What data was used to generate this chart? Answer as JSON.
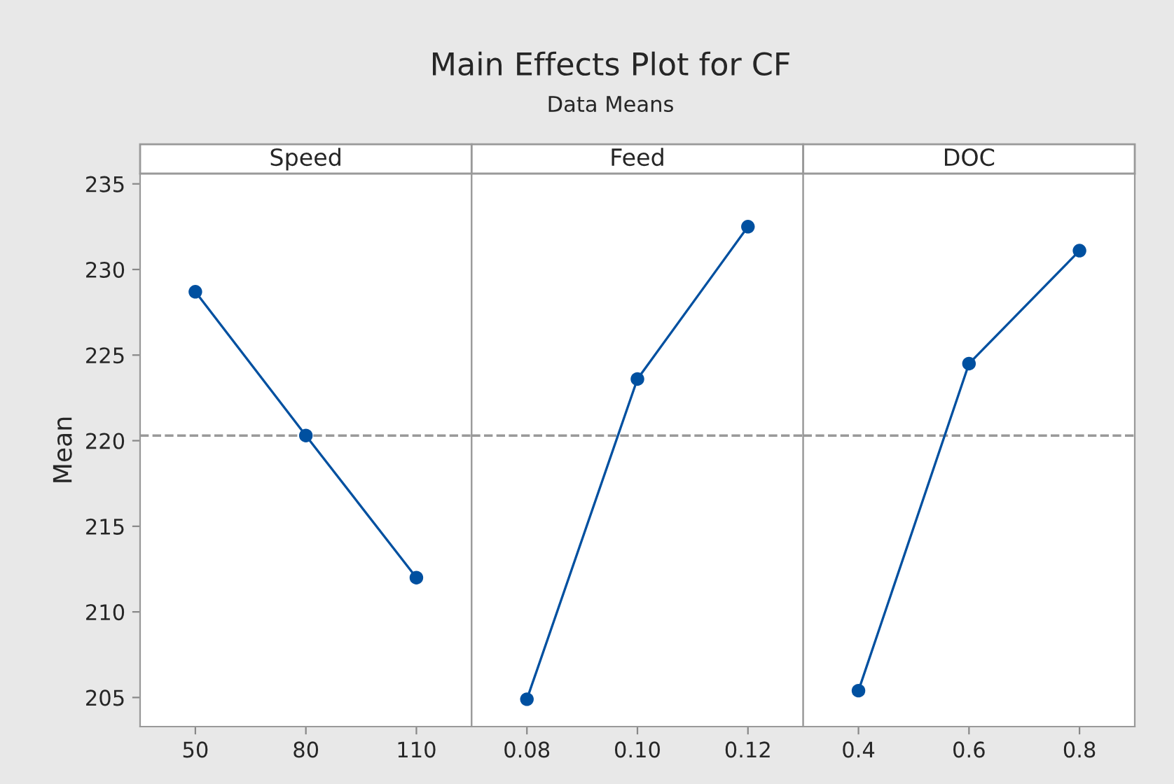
{
  "chart_data": [
    {
      "type": "line",
      "title": "Speed",
      "annotations": [
        "Main Effects Plot for CF",
        "Data Means"
      ],
      "ylabel": "Mean",
      "categories": [
        "50",
        "80",
        "110"
      ],
      "values": [
        228.7,
        220.3,
        212.0
      ],
      "color": "#0050a0",
      "marker": "circle",
      "line_style": "solid",
      "ylim": [
        203.3,
        235.6
      ],
      "yticks": [
        205,
        210,
        215,
        220,
        225,
        230,
        235
      ],
      "ref_lines": [
        {
          "axis": "y",
          "value": 220.3,
          "color": "#999999",
          "line_style": "dashed"
        }
      ]
    },
    {
      "type": "line",
      "title": "Feed",
      "categories": [
        "0.08",
        "0.10",
        "0.12"
      ],
      "values": [
        204.9,
        223.6,
        232.5
      ],
      "color": "#0050a0",
      "marker": "circle",
      "line_style": "solid",
      "ylim": [
        203.3,
        235.6
      ],
      "tick_labels": "x",
      "ref_lines": [
        {
          "axis": "y",
          "value": 220.3,
          "color": "#999999",
          "line_style": "dashed"
        }
      ]
    },
    {
      "type": "line",
      "title": "DOC",
      "categories": [
        "0.4",
        "0.6",
        "0.8"
      ],
      "values": [
        205.4,
        224.5,
        231.1
      ],
      "color": "#0050a0",
      "marker": "circle",
      "line_style": "solid",
      "ylim": [
        203.3,
        235.6
      ],
      "tick_labels": "x",
      "ref_lines": [
        {
          "axis": "y",
          "value": 220.3,
          "color": "#999999",
          "line_style": "dashed"
        }
      ]
    }
  ]
}
